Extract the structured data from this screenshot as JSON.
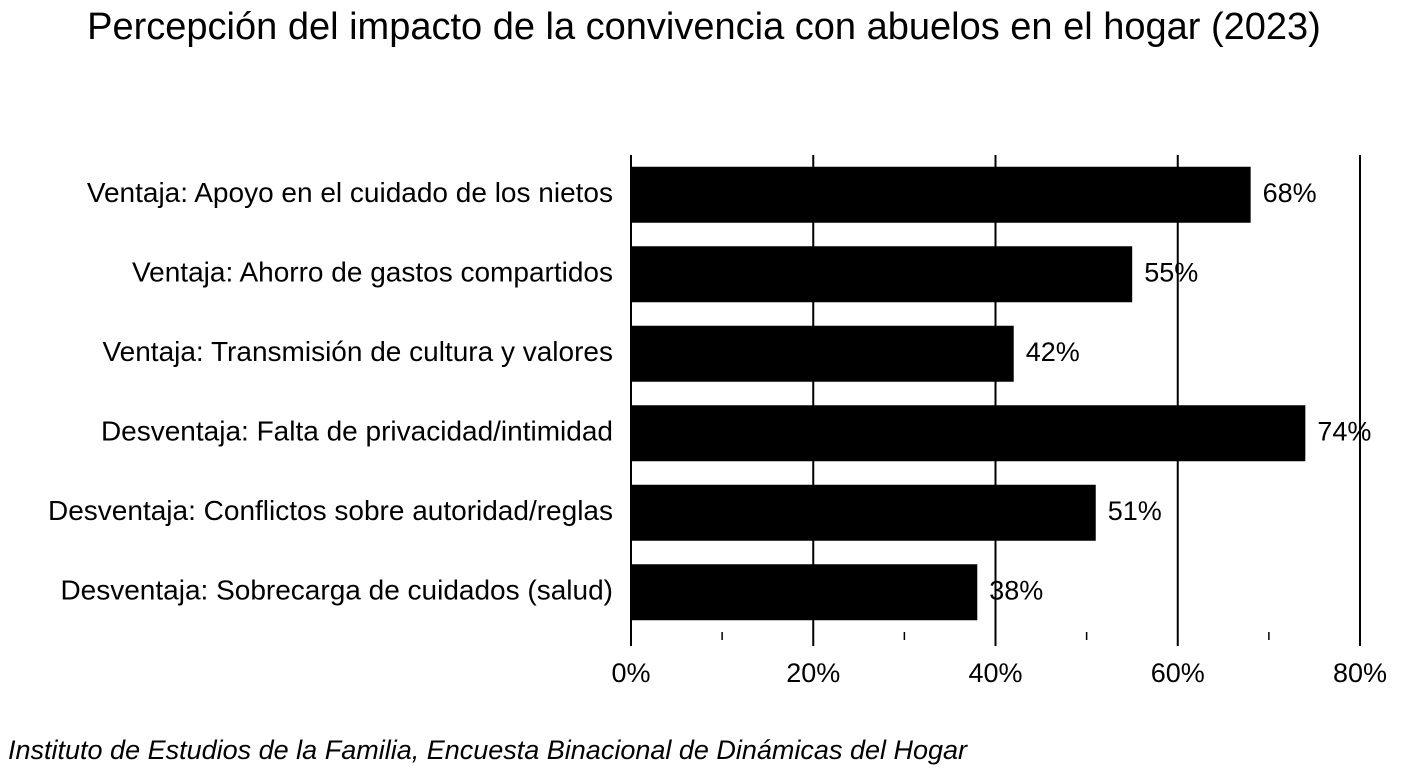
{
  "chart_data": {
    "type": "bar",
    "orientation": "horizontal",
    "title": "Percepción del impacto de la convivencia con abuelos en el hogar (2023)",
    "categories": [
      "Ventaja: Apoyo en el cuidado de los nietos",
      "Ventaja: Ahorro de gastos compartidos",
      "Ventaja: Transmisión de cultura y valores",
      "Desventaja: Falta de privacidad/intimidad",
      "Desventaja: Conflictos sobre autoridad/reglas",
      "Desventaja: Sobrecarga de cuidados (salud)"
    ],
    "values": [
      68,
      55,
      42,
      74,
      51,
      38
    ],
    "data_labels": [
      "68%",
      "55%",
      "42%",
      "74%",
      "51%",
      "38%"
    ],
    "xlim": [
      0,
      80
    ],
    "x_ticks": [
      0,
      20,
      40,
      60,
      80
    ],
    "x_tick_labels": [
      "0%",
      "20%",
      "40%",
      "60%",
      "80%"
    ],
    "grid": "vertical",
    "bar_color": "#000000",
    "xlabel": "",
    "ylabel": ""
  },
  "source": "Instituto de Estudios de la Familia, Encuesta Binacional de Dinámicas del Hogar"
}
